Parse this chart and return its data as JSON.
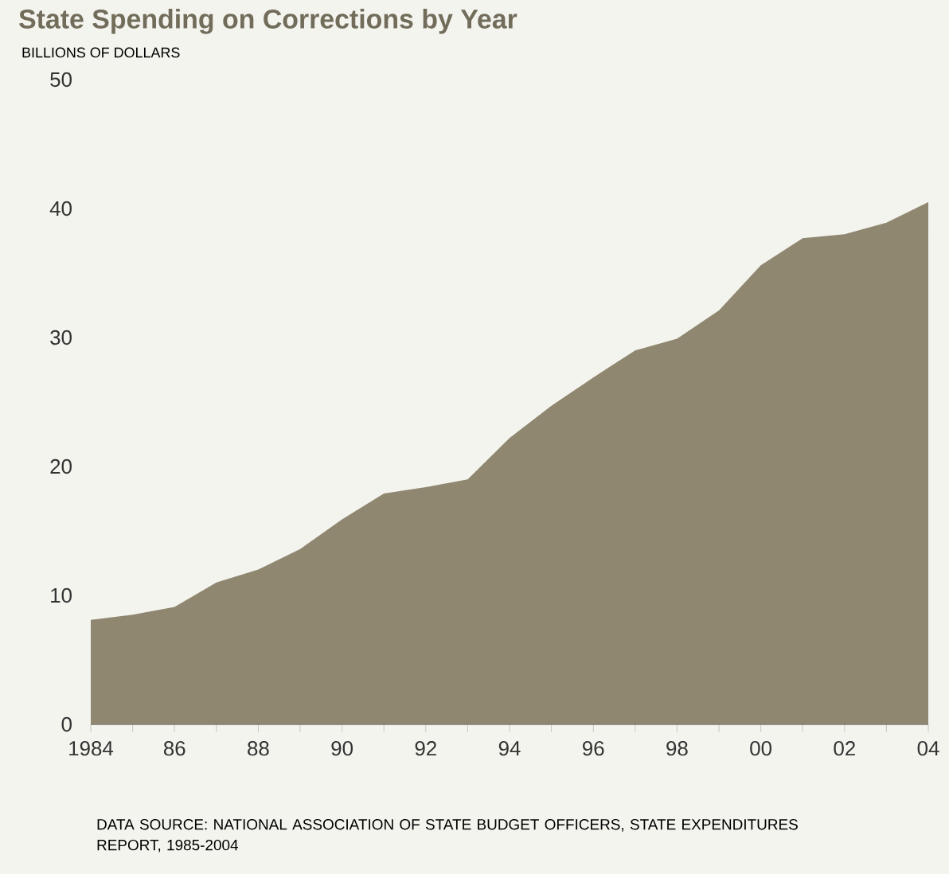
{
  "chart_data": {
    "type": "area",
    "title": "State Spending on Corrections by Year",
    "ylabel": "BILLIONS OF DOLLARS",
    "x": [
      1984,
      1985,
      1986,
      1987,
      1988,
      1989,
      1990,
      1991,
      1992,
      1993,
      1994,
      1995,
      1996,
      1997,
      1998,
      1999,
      2000,
      2001,
      2002,
      2003,
      2004
    ],
    "values": [
      8.1,
      8.5,
      9.1,
      11.0,
      12.0,
      13.6,
      15.9,
      17.9,
      18.4,
      19.0,
      22.2,
      24.7,
      26.9,
      29.0,
      29.9,
      32.1,
      35.6,
      37.7,
      38.0,
      38.9,
      40.5
    ],
    "color": "#8f8770",
    "xlim": [
      1984,
      2004
    ],
    "xticks": [
      {
        "value": 1984,
        "label": "1984"
      },
      {
        "value": 1985,
        "label": null
      },
      {
        "value": 1986,
        "label": "86"
      },
      {
        "value": 1987,
        "label": null
      },
      {
        "value": 1988,
        "label": "88"
      },
      {
        "value": 1989,
        "label": null
      },
      {
        "value": 1990,
        "label": "90"
      },
      {
        "value": 1991,
        "label": null
      },
      {
        "value": 1992,
        "label": "92"
      },
      {
        "value": 1993,
        "label": null
      },
      {
        "value": 1994,
        "label": "94"
      },
      {
        "value": 1995,
        "label": null
      },
      {
        "value": 1996,
        "label": "96"
      },
      {
        "value": 1997,
        "label": null
      },
      {
        "value": 1998,
        "label": "98"
      },
      {
        "value": 1999,
        "label": null
      },
      {
        "value": 2000,
        "label": "00"
      },
      {
        "value": 2001,
        "label": null
      },
      {
        "value": 2002,
        "label": "02"
      },
      {
        "value": 2003,
        "label": null
      },
      {
        "value": 2004,
        "label": "04"
      }
    ],
    "ylim": [
      0,
      50
    ],
    "yticks": [
      0,
      10,
      20,
      30,
      40,
      50
    ],
    "annotations": [
      "DATA SOURCE: NATIONAL ASSOCIATION OF STATE BUDGET OFFICERS, STATE EXPENDITURES REPORT, 1985-2004"
    ]
  }
}
